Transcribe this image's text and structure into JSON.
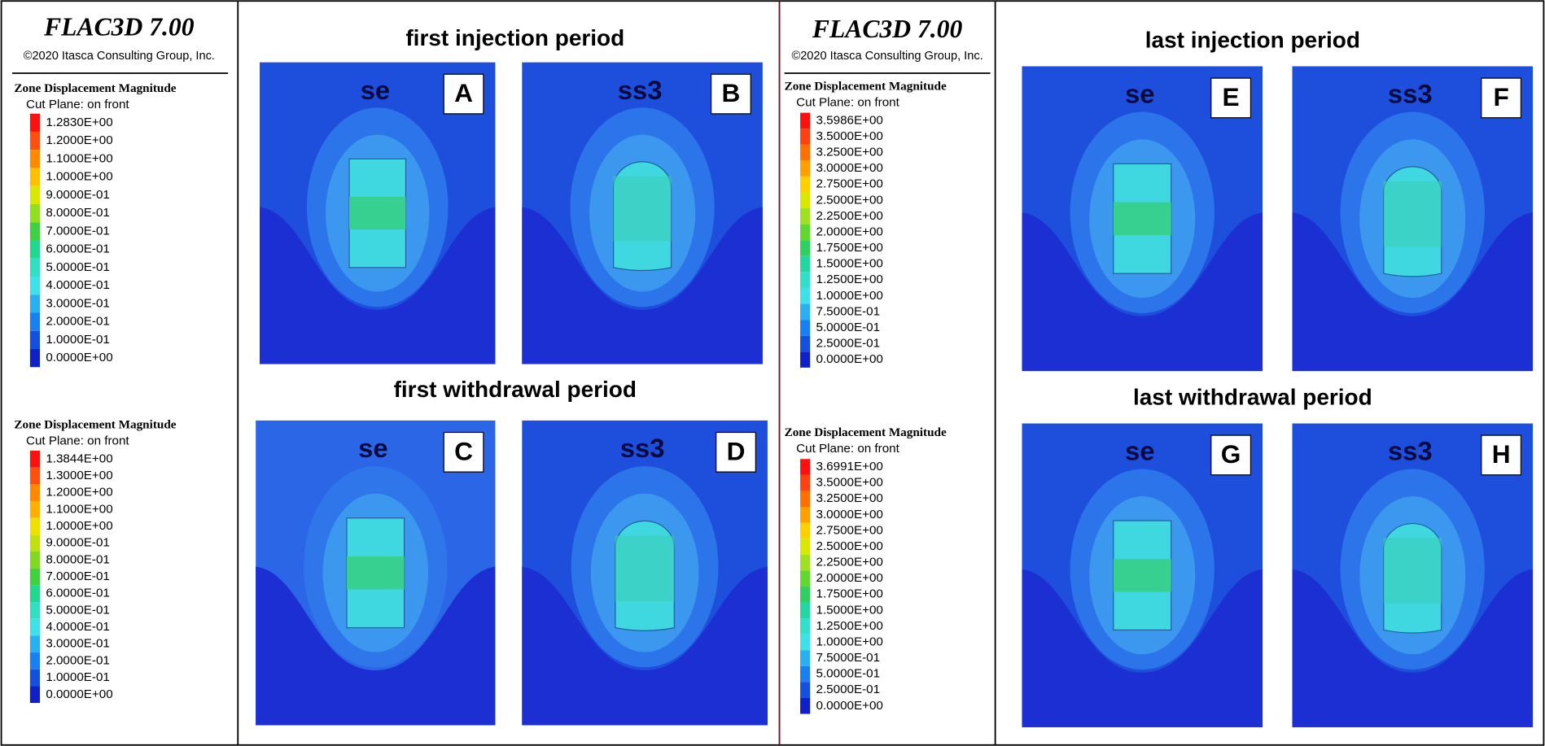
{
  "left_header": {
    "title": "FLAC3D 7.00",
    "copyright": "©2020 Itasca Consulting Group, Inc."
  },
  "right_header": {
    "title": "FLAC3D 7.00",
    "copyright": "©2020 Itasca Consulting Group, Inc."
  },
  "legends": [
    {
      "title": "Zone Displacement Magnitude",
      "subtitle": "Cut Plane: on front",
      "entries": [
        {
          "label": "1.2830E+00",
          "color": "#ff1010"
        },
        {
          "label": "1.2000E+00",
          "color": "#ff5010"
        },
        {
          "label": "1.1000E+00",
          "color": "#ff8a00"
        },
        {
          "label": "1.0000E+00",
          "color": "#ffc000"
        },
        {
          "label": "9.0000E-01",
          "color": "#d8e800"
        },
        {
          "label": "8.0000E-01",
          "color": "#90e020"
        },
        {
          "label": "7.0000E-01",
          "color": "#40d040"
        },
        {
          "label": "6.0000E-01",
          "color": "#20d890"
        },
        {
          "label": "5.0000E-01",
          "color": "#30e0c0"
        },
        {
          "label": "4.0000E-01",
          "color": "#40e0e8"
        },
        {
          "label": "3.0000E-01",
          "color": "#28b0f0"
        },
        {
          "label": "2.0000E-01",
          "color": "#1880f0"
        },
        {
          "label": "1.0000E-01",
          "color": "#1450e0"
        },
        {
          "label": "0.0000E+00",
          "color": "#1020c8"
        }
      ]
    },
    {
      "title": "Zone Displacement Magnitude",
      "subtitle": "Cut Plane: on front",
      "entries": [
        {
          "label": "1.3844E+00",
          "color": "#ff1010"
        },
        {
          "label": "1.3000E+00",
          "color": "#ff5010"
        },
        {
          "label": "1.2000E+00",
          "color": "#ff8a00"
        },
        {
          "label": "1.1000E+00",
          "color": "#ffb000"
        },
        {
          "label": "1.0000E+00",
          "color": "#f0e000"
        },
        {
          "label": "9.0000E-01",
          "color": "#c0e010"
        },
        {
          "label": "8.0000E-01",
          "color": "#80d820"
        },
        {
          "label": "7.0000E-01",
          "color": "#40d040"
        },
        {
          "label": "6.0000E-01",
          "color": "#20d890"
        },
        {
          "label": "5.0000E-01",
          "color": "#30e0c0"
        },
        {
          "label": "4.0000E-01",
          "color": "#40e0e8"
        },
        {
          "label": "3.0000E-01",
          "color": "#28b0f0"
        },
        {
          "label": "2.0000E-01",
          "color": "#1880f0"
        },
        {
          "label": "1.0000E-01",
          "color": "#1450e0"
        },
        {
          "label": "0.0000E+00",
          "color": "#1020c8"
        }
      ]
    },
    {
      "title": "Zone Displacement Magnitude",
      "subtitle": "Cut Plane: on front",
      "entries": [
        {
          "label": "3.5986E+00",
          "color": "#ff1010"
        },
        {
          "label": "3.5000E+00",
          "color": "#ff4010"
        },
        {
          "label": "3.2500E+00",
          "color": "#ff7000"
        },
        {
          "label": "3.0000E+00",
          "color": "#ffa000"
        },
        {
          "label": "2.7500E+00",
          "color": "#ffd000"
        },
        {
          "label": "2.5000E+00",
          "color": "#d8e800"
        },
        {
          "label": "2.2500E+00",
          "color": "#a0e020"
        },
        {
          "label": "2.0000E+00",
          "color": "#60d830"
        },
        {
          "label": "1.7500E+00",
          "color": "#30d060"
        },
        {
          "label": "1.5000E+00",
          "color": "#20d8a0"
        },
        {
          "label": "1.2500E+00",
          "color": "#30e0c8"
        },
        {
          "label": "1.0000E+00",
          "color": "#40e0e8"
        },
        {
          "label": "7.5000E-01",
          "color": "#28b0f0"
        },
        {
          "label": "5.0000E-01",
          "color": "#1880f0"
        },
        {
          "label": "2.5000E-01",
          "color": "#1450e0"
        },
        {
          "label": "0.0000E+00",
          "color": "#1020c8"
        }
      ]
    },
    {
      "title": "Zone Displacement Magnitude",
      "subtitle": "Cut Plane: on front",
      "entries": [
        {
          "label": "3.6991E+00",
          "color": "#ff1010"
        },
        {
          "label": "3.5000E+00",
          "color": "#ff4010"
        },
        {
          "label": "3.2500E+00",
          "color": "#ff7000"
        },
        {
          "label": "3.0000E+00",
          "color": "#ffa000"
        },
        {
          "label": "2.7500E+00",
          "color": "#ffd000"
        },
        {
          "label": "2.5000E+00",
          "color": "#d8e800"
        },
        {
          "label": "2.2500E+00",
          "color": "#a0e020"
        },
        {
          "label": "2.0000E+00",
          "color": "#60d830"
        },
        {
          "label": "1.7500E+00",
          "color": "#30d060"
        },
        {
          "label": "1.5000E+00",
          "color": "#20d8a0"
        },
        {
          "label": "1.2500E+00",
          "color": "#30e0c8"
        },
        {
          "label": "1.0000E+00",
          "color": "#40e0e8"
        },
        {
          "label": "7.5000E-01",
          "color": "#28b0f0"
        },
        {
          "label": "5.0000E-01",
          "color": "#1880f0"
        },
        {
          "label": "2.5000E-01",
          "color": "#1450e0"
        },
        {
          "label": "0.0000E+00",
          "color": "#1020c8"
        }
      ]
    }
  ],
  "sections": [
    {
      "title": "first injection period",
      "panels": [
        {
          "label": "se",
          "letter": "A"
        },
        {
          "label": "ss3",
          "letter": "B"
        }
      ]
    },
    {
      "title": "first withdrawal period",
      "panels": [
        {
          "label": "se",
          "letter": "C"
        },
        {
          "label": "ss3",
          "letter": "D"
        }
      ]
    },
    {
      "title": "last injection period",
      "panels": [
        {
          "label": "se",
          "letter": "E"
        },
        {
          "label": "ss3",
          "letter": "F"
        }
      ]
    },
    {
      "title": "last withdrawal period",
      "panels": [
        {
          "label": "se",
          "letter": "G"
        },
        {
          "label": "ss3",
          "letter": "H"
        }
      ]
    }
  ]
}
